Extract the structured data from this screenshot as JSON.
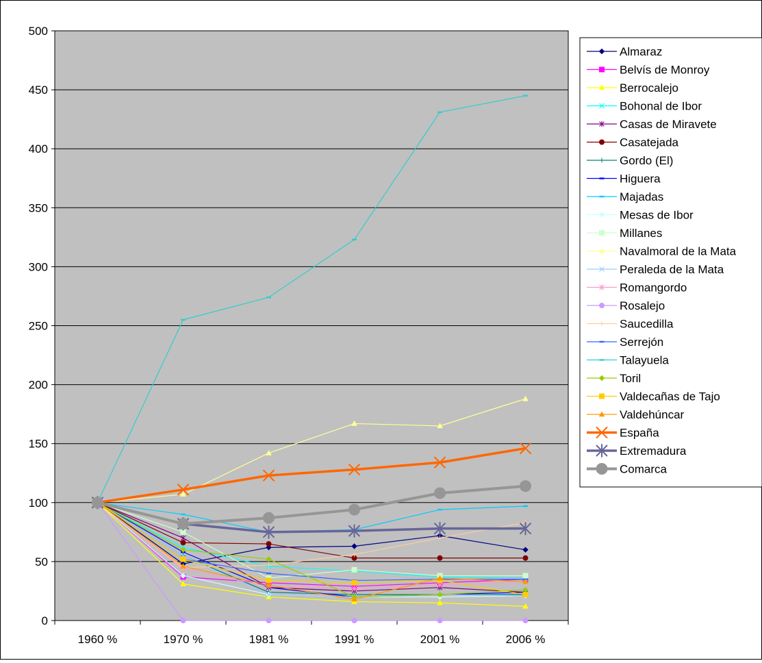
{
  "chart_data": {
    "type": "line",
    "title": "",
    "xlabel": "",
    "ylabel": "",
    "categories": [
      "1960 %",
      "1970 %",
      "1981 %",
      "1991 %",
      "2001 %",
      "2006 %"
    ],
    "ylim": [
      0,
      500
    ],
    "yticks": [
      0,
      50,
      100,
      150,
      200,
      250,
      300,
      350,
      400,
      450,
      500
    ],
    "grid": "horizontal",
    "legend_position": "right",
    "plot_background": "#c0c0c0",
    "series": [
      {
        "name": "Almaraz",
        "color": "#000080",
        "marker": "diamond",
        "values": [
          100,
          48,
          62,
          63,
          72,
          60
        ]
      },
      {
        "name": "Belvís de Monroy",
        "color": "#ff00ff",
        "marker": "square",
        "values": [
          100,
          37,
          32,
          29,
          32,
          35
        ]
      },
      {
        "name": "Berrocalejo",
        "color": "#ffff00",
        "marker": "triangle",
        "values": [
          100,
          31,
          20,
          16,
          15,
          12
        ]
      },
      {
        "name": "Bohonal de Ibor",
        "color": "#00ffff",
        "marker": "x",
        "values": [
          100,
          62,
          46,
          42,
          37,
          36
        ]
      },
      {
        "name": "Casas de Miravete",
        "color": "#800080",
        "marker": "star",
        "values": [
          100,
          70,
          28,
          25,
          28,
          24
        ]
      },
      {
        "name": "Casatejada",
        "color": "#800000",
        "marker": "circle",
        "values": [
          100,
          66,
          65,
          53,
          53,
          53
        ]
      },
      {
        "name": "Gordo (El)",
        "color": "#008080",
        "marker": "plus",
        "values": [
          100,
          55,
          24,
          22,
          22,
          22
        ]
      },
      {
        "name": "Higuera",
        "color": "#0000ff",
        "marker": "dash",
        "values": [
          100,
          58,
          28,
          20,
          22,
          24
        ]
      },
      {
        "name": "Majadas",
        "color": "#00ccff",
        "marker": "dash",
        "values": [
          100,
          90,
          75,
          77,
          94,
          97
        ]
      },
      {
        "name": "Mesas de Ibor",
        "color": "#ccffff",
        "marker": "diamond",
        "values": [
          100,
          38,
          22,
          20,
          20,
          21
        ]
      },
      {
        "name": "Millanes",
        "color": "#ccffcc",
        "marker": "square",
        "values": [
          100,
          75,
          36,
          43,
          38,
          38
        ]
      },
      {
        "name": "Navalmoral de la Mata",
        "color": "#ffff99",
        "marker": "triangle",
        "values": [
          100,
          107,
          142,
          167,
          165,
          188
        ]
      },
      {
        "name": "Peraleda de la Mata",
        "color": "#99ccff",
        "marker": "x",
        "values": [
          100,
          55,
          22,
          20,
          22,
          21
        ]
      },
      {
        "name": "Romangordo",
        "color": "#ff99cc",
        "marker": "star",
        "values": [
          100,
          44,
          29,
          27,
          30,
          33
        ]
      },
      {
        "name": "Rosalejo",
        "color": "#cc99ff",
        "marker": "circle",
        "values": [
          100,
          0,
          0,
          0,
          0,
          0
        ]
      },
      {
        "name": "Saucedilla",
        "color": "#ffcc99",
        "marker": "plus",
        "values": [
          100,
          45,
          47,
          56,
          70,
          83
        ]
      },
      {
        "name": "Serrejón",
        "color": "#3366ff",
        "marker": "dash",
        "values": [
          100,
          52,
          40,
          34,
          35,
          35
        ]
      },
      {
        "name": "Talayuela",
        "color": "#33cccc",
        "marker": "dash",
        "values": [
          100,
          255,
          274,
          323,
          431,
          445
        ]
      },
      {
        "name": "Toril",
        "color": "#99cc00",
        "marker": "diamond",
        "values": [
          100,
          60,
          52,
          20,
          22,
          26
        ]
      },
      {
        "name": "Valdecañas de Tajo",
        "color": "#ffcc00",
        "marker": "square",
        "values": [
          100,
          52,
          34,
          32,
          34,
          22
        ]
      },
      {
        "name": "Valdehúncar",
        "color": "#ff9900",
        "marker": "triangle",
        "values": [
          100,
          46,
          30,
          18,
          36,
          33
        ]
      },
      {
        "name": "España",
        "color": "#ff6600",
        "marker": "x",
        "width": 3.5,
        "values": [
          100,
          111,
          123,
          128,
          134,
          146
        ]
      },
      {
        "name": "Extremadura",
        "color": "#666699",
        "marker": "star",
        "width": 3.5,
        "values": [
          100,
          82,
          75,
          76,
          78,
          78
        ]
      },
      {
        "name": "Comarca",
        "color": "#969696",
        "marker": "circle",
        "width": 4,
        "values": [
          100,
          82,
          87,
          94,
          108,
          114
        ]
      }
    ]
  }
}
